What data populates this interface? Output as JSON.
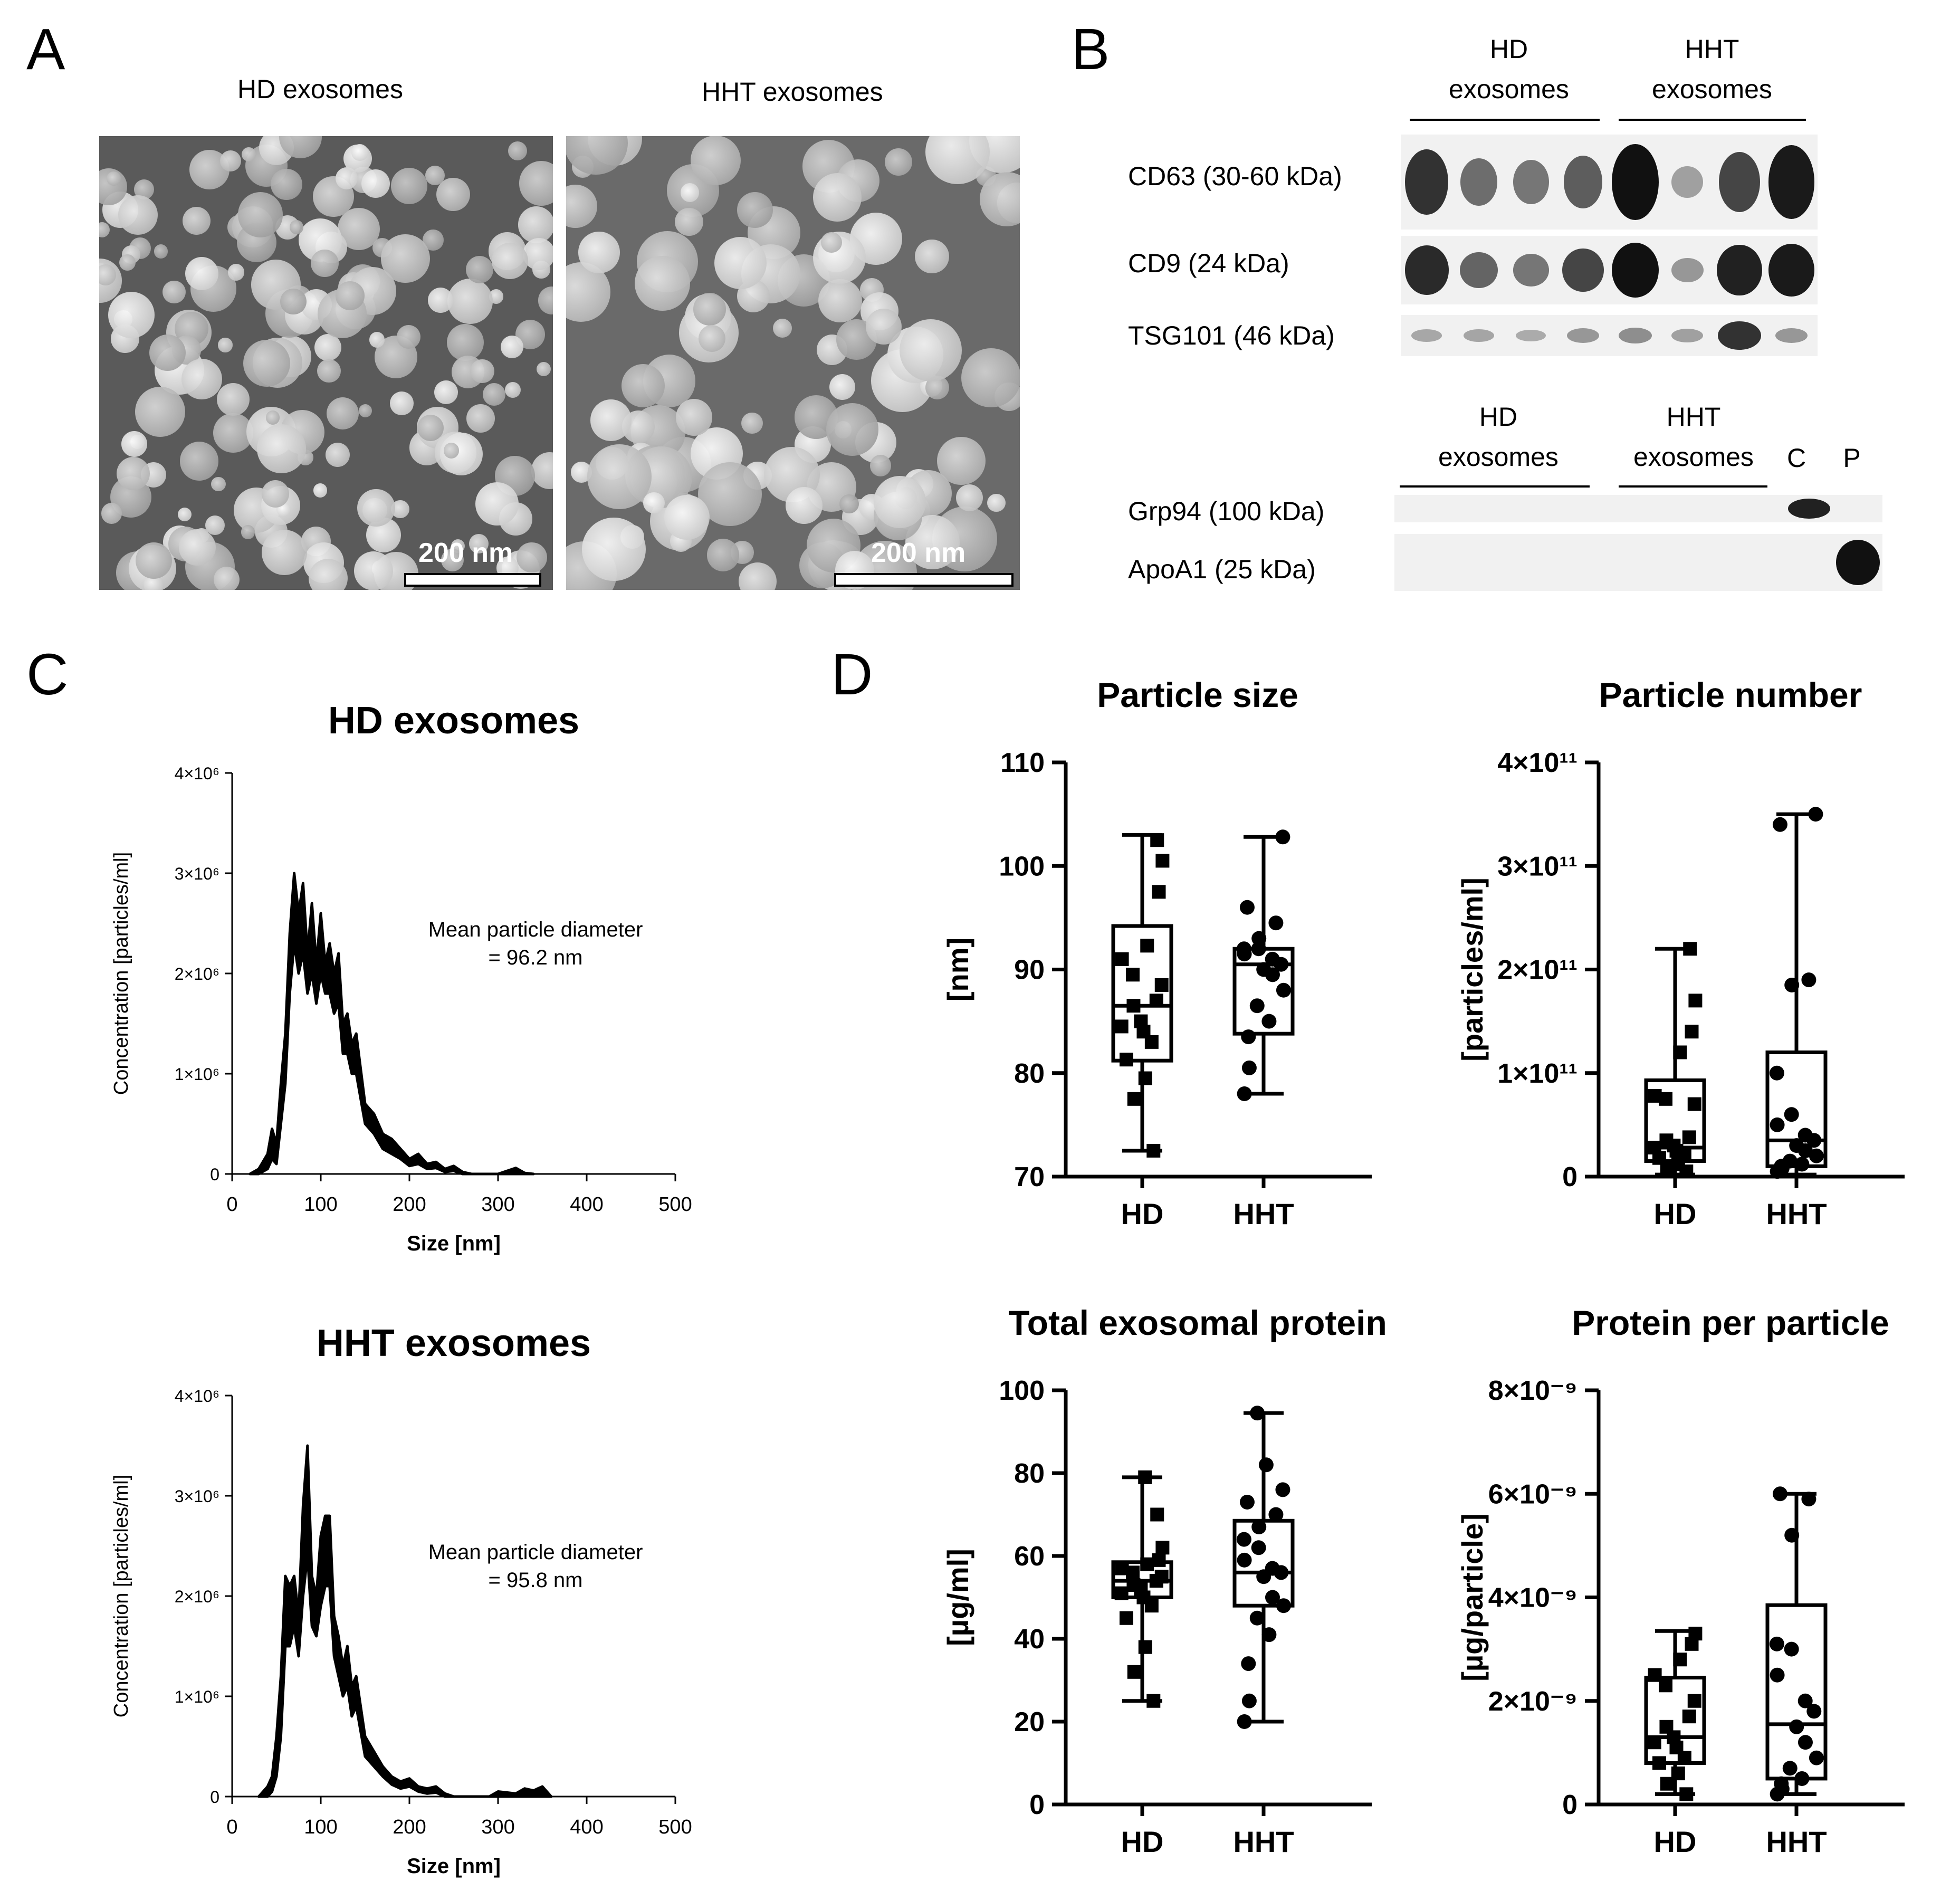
{
  "panels": {
    "A": {
      "letter": "A",
      "images": [
        {
          "title": "HD exosomes",
          "scale_bar": "200 nm"
        },
        {
          "title": "HHT exosomes",
          "scale_bar": "200 nm"
        }
      ]
    },
    "B": {
      "letter": "B",
      "upper_groups": [
        {
          "label_line1": "HD",
          "label_line2": "exosomes"
        },
        {
          "label_line1": "HHT",
          "label_line2": "exosomes"
        }
      ],
      "lower_groups": [
        {
          "label_line1": "HD",
          "label_line2": "exosomes"
        },
        {
          "label_line1": "HHT",
          "label_line2": "exosomes"
        },
        {
          "label_line1": "",
          "label_line2": "C"
        },
        {
          "label_line1": "",
          "label_line2": "P"
        }
      ],
      "blots": [
        {
          "label": "CD63 (30-60 kDa)",
          "intensities": [
            0.8,
            0.45,
            0.4,
            0.55,
            1.0,
            0.15,
            0.7,
            0.95
          ]
        },
        {
          "label": "CD9 (24 kDa)",
          "intensities": [
            0.85,
            0.5,
            0.4,
            0.7,
            1.0,
            0.2,
            0.9,
            0.95
          ]
        },
        {
          "label": "TSG101 (46 kDa)",
          "intensities": [
            0.1,
            0.12,
            0.08,
            0.2,
            0.25,
            0.15,
            0.8,
            0.2
          ]
        },
        {
          "label": "Grp94 (100 kDa)",
          "intensities": [
            0,
            0,
            0,
            0,
            0,
            0,
            0,
            0,
            0.9,
            0
          ]
        },
        {
          "label": "ApoA1 (25 kDa)",
          "intensities": [
            0,
            0,
            0,
            0,
            0,
            0,
            0,
            0,
            0,
            1.0
          ]
        }
      ]
    },
    "C": {
      "letter": "C"
    },
    "D": {
      "letter": "D"
    }
  },
  "chart_data": [
    {
      "type": "area",
      "title": "HD exosomes",
      "xlabel": "Size [nm]",
      "ylabel": "Concentration [particles/ml]",
      "xlim": [
        0,
        500
      ],
      "ylim": [
        0,
        4000000
      ],
      "xticks": [
        "0",
        "100",
        "200",
        "300",
        "400",
        "500"
      ],
      "yticks": [
        "0",
        "1×10⁶",
        "2×10⁶",
        "3×10⁶",
        "4×10⁶"
      ],
      "annotation_line1": "Mean particle diameter",
      "annotation_line2": "= 96.2 nm",
      "series": [
        {
          "x": [
            20,
            30,
            40,
            45,
            50,
            55,
            60,
            65,
            70,
            75,
            80,
            85,
            90,
            95,
            100,
            105,
            110,
            115,
            120,
            125,
            130,
            135,
            140,
            150,
            160,
            170,
            180,
            190,
            200,
            210,
            220,
            230,
            240,
            250,
            260,
            270,
            300,
            320,
            330,
            340
          ],
          "upper": [
            0,
            50000,
            200000,
            450000,
            300000,
            900000,
            1400000,
            2400000,
            3000000,
            2600000,
            2900000,
            2200000,
            2700000,
            2100000,
            2600000,
            2100000,
            2300000,
            2000000,
            2200000,
            1500000,
            1600000,
            1300000,
            1400000,
            700000,
            600000,
            400000,
            350000,
            250000,
            150000,
            200000,
            100000,
            120000,
            50000,
            80000,
            20000,
            0,
            0,
            60000,
            10000,
            0
          ],
          "lower": [
            0,
            0,
            50000,
            150000,
            100000,
            500000,
            900000,
            1800000,
            2300000,
            2000000,
            2200000,
            1800000,
            2000000,
            1700000,
            2000000,
            1800000,
            1800000,
            1600000,
            1700000,
            1200000,
            1200000,
            1000000,
            1000000,
            500000,
            400000,
            250000,
            200000,
            150000,
            80000,
            100000,
            50000,
            60000,
            20000,
            30000,
            0,
            0,
            0,
            0,
            0,
            0
          ]
        }
      ]
    },
    {
      "type": "area",
      "title": "HHT exosomes",
      "xlabel": "Size [nm]",
      "ylabel": "Concentration [particles/ml]",
      "xlim": [
        0,
        500
      ],
      "ylim": [
        0,
        4000000
      ],
      "xticks": [
        "0",
        "100",
        "200",
        "300",
        "400",
        "500"
      ],
      "yticks": [
        "0",
        "1×10⁶",
        "2×10⁶",
        "3×10⁶",
        "4×10⁶"
      ],
      "annotation_line1": "Mean particle diameter",
      "annotation_line2": "= 95.8 nm",
      "series": [
        {
          "x": [
            30,
            40,
            45,
            50,
            55,
            60,
            65,
            70,
            75,
            80,
            85,
            90,
            95,
            100,
            105,
            110,
            115,
            120,
            125,
            130,
            135,
            140,
            150,
            160,
            170,
            180,
            190,
            200,
            210,
            220,
            230,
            240,
            250,
            290,
            300,
            310,
            320,
            330,
            340,
            350,
            360
          ],
          "upper": [
            0,
            100000,
            200000,
            600000,
            1200000,
            2200000,
            2100000,
            2200000,
            1800000,
            2900000,
            3500000,
            2200000,
            2000000,
            2600000,
            2800000,
            2800000,
            1800000,
            1600000,
            1300000,
            1500000,
            1100000,
            1200000,
            600000,
            450000,
            300000,
            200000,
            150000,
            180000,
            100000,
            80000,
            100000,
            30000,
            0,
            0,
            50000,
            40000,
            30000,
            80000,
            60000,
            100000,
            0
          ],
          "lower": [
            0,
            0,
            50000,
            200000,
            600000,
            1500000,
            1500000,
            1700000,
            1400000,
            2000000,
            2400000,
            1700000,
            1600000,
            1900000,
            2100000,
            2100000,
            1400000,
            1200000,
            1000000,
            1100000,
            800000,
            900000,
            400000,
            300000,
            200000,
            120000,
            80000,
            100000,
            50000,
            30000,
            40000,
            0,
            0,
            0,
            0,
            0,
            0,
            0,
            0,
            0,
            0
          ]
        }
      ]
    },
    {
      "type": "box",
      "title": "Particle size",
      "ylabel": "[nm]",
      "ylim": [
        70,
        110
      ],
      "yticks": [
        "70",
        "80",
        "90",
        "100",
        "110"
      ],
      "categories": [
        "HD",
        "HHT"
      ],
      "series": [
        {
          "name": "HD",
          "marker": "square",
          "min": 72.5,
          "q1": 81.2,
          "median": 86.5,
          "q3": 94.2,
          "max": 103,
          "points": [
            72.5,
            77.5,
            79.5,
            81.3,
            83.0,
            84.0,
            84.5,
            85.0,
            86.5,
            87.0,
            88.5,
            89.5,
            91.0,
            92.3,
            97.5,
            100.5,
            102.5
          ]
        },
        {
          "name": "HHT",
          "marker": "circle",
          "min": 78,
          "q1": 83.8,
          "median": 90.5,
          "q3": 92,
          "max": 102.8,
          "points": [
            78.0,
            80.5,
            83.5,
            85.0,
            86.5,
            88.0,
            89.5,
            90.0,
            90.5,
            91.0,
            91.5,
            92.0,
            92.0,
            93.0,
            94.5,
            96.0,
            102.8
          ]
        }
      ]
    },
    {
      "type": "box",
      "title": "Particle number",
      "ylabel": "[particles/ml]",
      "ylim": [
        0,
        400000000000
      ],
      "yticks": [
        "0",
        "1×10¹¹",
        "2×10¹¹",
        "3×10¹¹",
        "4×10¹¹"
      ],
      "categories": [
        "HD",
        "HHT"
      ],
      "series": [
        {
          "name": "HD",
          "marker": "square",
          "min": 2000000000,
          "q1": 15000000000,
          "median": 28000000000,
          "q3": 93000000000,
          "max": 220000000000,
          "points": [
            5000000000,
            8000000000,
            12000000000,
            18000000000,
            22000000000,
            25000000000,
            28000000000,
            30000000000,
            35000000000,
            38000000000,
            70000000000,
            75000000000,
            78000000000,
            120000000000,
            140000000000,
            170000000000,
            220000000000
          ]
        },
        {
          "name": "HHT",
          "marker": "circle",
          "min": 2000000000,
          "q1": 10000000000,
          "median": 35000000000,
          "q3": 120000000000,
          "max": 350000000000,
          "points": [
            5000000000,
            8000000000,
            10000000000,
            12000000000,
            15000000000,
            20000000000,
            25000000000,
            30000000000,
            35000000000,
            40000000000,
            50000000000,
            60000000000,
            100000000000,
            185000000000,
            190000000000,
            340000000000,
            350000000000
          ]
        }
      ]
    },
    {
      "type": "box",
      "title": "Total exosomal protein",
      "ylabel": "[µg/ml]",
      "ylim": [
        0,
        100
      ],
      "yticks": [
        "0",
        "20",
        "40",
        "60",
        "80",
        "100"
      ],
      "categories": [
        "HD",
        "HHT"
      ],
      "series": [
        {
          "name": "HD",
          "marker": "square",
          "min": 25,
          "q1": 50,
          "median": 54,
          "q3": 58.5,
          "max": 79,
          "points": [
            25,
            32,
            38,
            45,
            48,
            50,
            51,
            52,
            53,
            54,
            55,
            56,
            57,
            58,
            59,
            62,
            70,
            79
          ]
        },
        {
          "name": "HHT",
          "marker": "circle",
          "min": 20,
          "q1": 48,
          "median": 56,
          "q3": 68.5,
          "max": 94.5,
          "points": [
            20,
            25,
            34,
            41,
            45,
            48,
            50,
            55,
            56,
            57,
            59,
            62,
            64,
            67,
            70,
            73,
            76,
            82,
            94.5
          ]
        }
      ]
    },
    {
      "type": "box",
      "title": "Protein per particle",
      "ylabel": "[µg/particle]",
      "ylim": [
        0,
        8e-09
      ],
      "yticks": [
        "0",
        "2×10⁻⁹",
        "4×10⁻⁹",
        "6×10⁻⁹",
        "8×10⁻⁹"
      ],
      "categories": [
        "HD",
        "HHT"
      ],
      "series": [
        {
          "name": "HD",
          "marker": "square",
          "min": 2e-10,
          "q1": 8e-10,
          "median": 1.3e-09,
          "q3": 2.45e-09,
          "max": 3.35e-09,
          "points": [
            2e-10,
            4e-10,
            6e-10,
            8e-10,
            9e-10,
            1.1e-09,
            1.2e-09,
            1.3e-09,
            1.5e-09,
            1.7e-09,
            2e-09,
            2.3e-09,
            2.5e-09,
            2.8e-09,
            3.1e-09,
            3.3e-09
          ]
        },
        {
          "name": "HHT",
          "marker": "circle",
          "min": 2e-10,
          "q1": 5e-10,
          "median": 1.55e-09,
          "q3": 3.85e-09,
          "max": 6e-09,
          "points": [
            2e-10,
            3e-10,
            4e-10,
            5e-10,
            7e-10,
            9e-10,
            1.2e-09,
            1.5e-09,
            1.8e-09,
            2e-09,
            2.5e-09,
            3e-09,
            3.1e-09,
            5.2e-09,
            5.9e-09,
            6e-09
          ]
        }
      ]
    }
  ]
}
